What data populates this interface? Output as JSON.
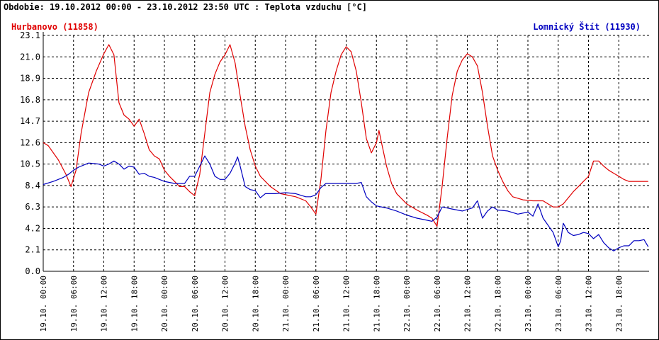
{
  "title": "Obdobie: 19.10.2012 00:00 - 23.10.2012 23:50 UTC : Teplota vzduchu [°C]",
  "chart_data": {
    "type": "line",
    "xlabel": "",
    "ylabel": "",
    "ylim": [
      0.0,
      23.1
    ],
    "xlim": [
      "19.10. 00:00",
      "24.10. 00:00"
    ],
    "yticks": [
      "0.0",
      "2.1",
      "4.2",
      "6.3",
      "8.4",
      "10.5",
      "12.6",
      "14.7",
      "16.8",
      "18.9",
      "21.0",
      "23.1"
    ],
    "xticks": [
      "19.10. 00:00",
      "19.10. 06:00",
      "19.10. 12:00",
      "19.10. 18:00",
      "20.10. 00:00",
      "20.10. 06:00",
      "20.10. 12:00",
      "20.10. 18:00",
      "21.10. 00:00",
      "21.10. 06:00",
      "21.10. 12:00",
      "21.10. 18:00",
      "22.10. 00:00",
      "22.10. 06:00",
      "22.10. 12:00",
      "22.10. 18:00",
      "23.10. 00:00",
      "23.10. 06:00",
      "23.10. 12:00",
      "23.10. 18:00"
    ],
    "grid": true,
    "legend": "top",
    "series": [
      {
        "name": "Hurbanovo (11858)",
        "color": "#e00000",
        "points": [
          [
            "19.10. 00:00",
            12.6
          ],
          [
            "19.10. 01:00",
            12.3
          ],
          [
            "19.10. 03:00",
            10.9
          ],
          [
            "19.10. 04:30",
            9.5
          ],
          [
            "19.10. 05:30",
            8.3
          ],
          [
            "19.10. 06:30",
            9.9
          ],
          [
            "19.10. 07:30",
            13.5
          ],
          [
            "19.10. 09:00",
            17.5
          ],
          [
            "19.10. 10:30",
            19.6
          ],
          [
            "19.10. 12:00",
            21.3
          ],
          [
            "19.10. 13:00",
            22.2
          ],
          [
            "19.10. 14:00",
            21.2
          ],
          [
            "19.10. 15:00",
            16.5
          ],
          [
            "19.10. 16:00",
            15.3
          ],
          [
            "19.10. 17:00",
            14.9
          ],
          [
            "19.10. 18:00",
            14.2
          ],
          [
            "19.10. 19:00",
            14.9
          ],
          [
            "19.10. 20:00",
            13.5
          ],
          [
            "19.10. 21:00",
            11.9
          ],
          [
            "19.10. 22:00",
            11.3
          ],
          [
            "19.10. 23:00",
            11.0
          ],
          [
            "20.10. 00:00",
            9.9
          ],
          [
            "20.10. 01:00",
            9.3
          ],
          [
            "20.10. 02:00",
            8.8
          ],
          [
            "20.10. 03:00",
            8.3
          ],
          [
            "20.10. 04:00",
            8.3
          ],
          [
            "20.10. 05:00",
            7.8
          ],
          [
            "20.10. 06:00",
            7.4
          ],
          [
            "20.10. 07:00",
            9.5
          ],
          [
            "20.10. 08:00",
            13.5
          ],
          [
            "20.10. 09:00",
            17.5
          ],
          [
            "20.10. 10:00",
            19.3
          ],
          [
            "20.10. 11:00",
            20.5
          ],
          [
            "20.10. 12:00",
            21.2
          ],
          [
            "20.10. 13:00",
            22.2
          ],
          [
            "20.10. 14:00",
            20.4
          ],
          [
            "20.10. 15:00",
            17.2
          ],
          [
            "20.10. 16:00",
            14.2
          ],
          [
            "20.10. 17:00",
            11.9
          ],
          [
            "20.10. 18:00",
            10.3
          ],
          [
            "20.10. 19:00",
            9.3
          ],
          [
            "20.10. 21:00",
            8.3
          ],
          [
            "20.10. 23:00",
            7.6
          ],
          [
            "21.10. 02:00",
            7.3
          ],
          [
            "21.10. 04:00",
            6.9
          ],
          [
            "21.10. 05:00",
            6.3
          ],
          [
            "21.10. 06:00",
            5.6
          ],
          [
            "21.10. 07:00",
            9.0
          ],
          [
            "21.10. 08:00",
            13.8
          ],
          [
            "21.10. 09:00",
            17.5
          ],
          [
            "21.10. 10:00",
            19.6
          ],
          [
            "21.10. 11:00",
            21.2
          ],
          [
            "21.10. 12:00",
            22.0
          ],
          [
            "21.10. 13:00",
            21.5
          ],
          [
            "21.10. 14:00",
            19.6
          ],
          [
            "21.10. 15:00",
            16.5
          ],
          [
            "21.10. 16:00",
            13.0
          ],
          [
            "21.10. 17:00",
            11.6
          ],
          [
            "21.10. 18:00",
            12.6
          ],
          [
            "21.10. 18:30",
            13.8
          ],
          [
            "21.10. 19:00",
            12.6
          ],
          [
            "21.10. 20:00",
            10.3
          ],
          [
            "21.10. 21:00",
            8.6
          ],
          [
            "21.10. 22:00",
            7.6
          ],
          [
            "22.10. 00:00",
            6.6
          ],
          [
            "22.10. 02:00",
            6.0
          ],
          [
            "22.10. 04:00",
            5.5
          ],
          [
            "22.10. 05:00",
            5.2
          ],
          [
            "22.10. 06:00",
            4.4
          ],
          [
            "22.10. 07:00",
            8.3
          ],
          [
            "22.10. 08:00",
            13.0
          ],
          [
            "22.10. 09:00",
            17.2
          ],
          [
            "22.10. 10:00",
            19.6
          ],
          [
            "22.10. 11:00",
            20.7
          ],
          [
            "22.10. 12:00",
            21.3
          ],
          [
            "22.10. 13:00",
            21.0
          ],
          [
            "22.10. 14:00",
            20.1
          ],
          [
            "22.10. 15:00",
            17.5
          ],
          [
            "22.10. 16:00",
            14.2
          ],
          [
            "22.10. 17:00",
            11.3
          ],
          [
            "22.10. 18:00",
            9.9
          ],
          [
            "22.10. 19:00",
            8.8
          ],
          [
            "22.10. 20:00",
            7.9
          ],
          [
            "22.10. 21:00",
            7.3
          ],
          [
            "22.10. 23:00",
            7.0
          ],
          [
            "23.10. 01:00",
            6.9
          ],
          [
            "23.10. 03:00",
            6.9
          ],
          [
            "23.10. 05:00",
            6.3
          ],
          [
            "23.10. 06:00",
            6.3
          ],
          [
            "23.10. 07:00",
            6.6
          ],
          [
            "23.10. 08:00",
            7.2
          ],
          [
            "23.10. 09:00",
            7.8
          ],
          [
            "23.10. 10:00",
            8.3
          ],
          [
            "23.10. 11:00",
            8.8
          ],
          [
            "23.10. 12:00",
            9.3
          ],
          [
            "23.10. 13:00",
            10.8
          ],
          [
            "23.10. 14:00",
            10.8
          ],
          [
            "23.10. 15:00",
            10.3
          ],
          [
            "23.10. 16:00",
            9.9
          ],
          [
            "23.10. 17:00",
            9.6
          ],
          [
            "23.10. 18:00",
            9.3
          ],
          [
            "23.10. 19:00",
            9.0
          ],
          [
            "23.10. 20:00",
            8.8
          ],
          [
            "23.10. 22:00",
            8.8
          ],
          [
            "23.10. 23:50",
            8.8
          ]
        ]
      },
      {
        "name": "Lomnický Štít (11930)",
        "color": "#0000c0",
        "points": [
          [
            "19.10. 00:00",
            8.5
          ],
          [
            "19.10. 02:00",
            8.8
          ],
          [
            "19.10. 04:00",
            9.2
          ],
          [
            "19.10. 05:00",
            9.5
          ],
          [
            "19.10. 06:00",
            9.9
          ],
          [
            "19.10. 07:00",
            10.2
          ],
          [
            "19.10. 09:00",
            10.6
          ],
          [
            "19.10. 11:00",
            10.5
          ],
          [
            "19.10. 12:00",
            10.3
          ],
          [
            "19.10. 13:00",
            10.5
          ],
          [
            "19.10. 14:00",
            10.8
          ],
          [
            "19.10. 15:00",
            10.5
          ],
          [
            "19.10. 16:00",
            10.0
          ],
          [
            "19.10. 17:00",
            10.3
          ],
          [
            "19.10. 18:00",
            10.2
          ],
          [
            "19.10. 19:00",
            9.5
          ],
          [
            "19.10. 20:00",
            9.6
          ],
          [
            "19.10. 21:00",
            9.3
          ],
          [
            "19.10. 22:00",
            9.2
          ],
          [
            "19.10. 23:00",
            9.0
          ],
          [
            "20.10. 00:00",
            8.8
          ],
          [
            "20.10. 02:00",
            8.6
          ],
          [
            "20.10. 04:00",
            8.6
          ],
          [
            "20.10. 05:00",
            9.3
          ],
          [
            "20.10. 06:00",
            9.3
          ],
          [
            "20.10. 07:00",
            10.3
          ],
          [
            "20.10. 08:00",
            11.3
          ],
          [
            "20.10. 09:00",
            10.5
          ],
          [
            "20.10. 10:00",
            9.3
          ],
          [
            "20.10. 11:00",
            9.0
          ],
          [
            "20.10. 12:00",
            9.0
          ],
          [
            "20.10. 13:00",
            9.6
          ],
          [
            "20.10. 14:00",
            10.6
          ],
          [
            "20.10. 14:30",
            11.2
          ],
          [
            "20.10. 15:00",
            10.3
          ],
          [
            "20.10. 16:00",
            8.3
          ],
          [
            "20.10. 17:00",
            8.0
          ],
          [
            "20.10. 18:00",
            7.9
          ],
          [
            "20.10. 19:00",
            7.2
          ],
          [
            "20.10. 20:00",
            7.6
          ],
          [
            "20.10. 22:00",
            7.6
          ],
          [
            "21.10. 00:00",
            7.7
          ],
          [
            "21.10. 02:00",
            7.6
          ],
          [
            "21.10. 04:00",
            7.3
          ],
          [
            "21.10. 05:00",
            7.3
          ],
          [
            "21.10. 06:00",
            7.5
          ],
          [
            "21.10. 07:00",
            8.2
          ],
          [
            "21.10. 08:00",
            8.6
          ],
          [
            "21.10. 10:00",
            8.6
          ],
          [
            "21.10. 12:00",
            8.6
          ],
          [
            "21.10. 14:00",
            8.6
          ],
          [
            "21.10. 15:00",
            8.7
          ],
          [
            "21.10. 16:00",
            7.3
          ],
          [
            "21.10. 17:00",
            6.8
          ],
          [
            "21.10. 18:00",
            6.4
          ],
          [
            "21.10. 20:00",
            6.2
          ],
          [
            "21.10. 22:00",
            5.9
          ],
          [
            "22.10. 00:00",
            5.5
          ],
          [
            "22.10. 02:00",
            5.2
          ],
          [
            "22.10. 04:00",
            5.0
          ],
          [
            "22.10. 05:00",
            4.9
          ],
          [
            "22.10. 06:00",
            5.3
          ],
          [
            "22.10. 07:00",
            6.3
          ],
          [
            "22.10. 09:00",
            6.1
          ],
          [
            "22.10. 11:00",
            5.9
          ],
          [
            "22.10. 13:00",
            6.2
          ],
          [
            "22.10. 14:00",
            6.9
          ],
          [
            "22.10. 15:00",
            5.2
          ],
          [
            "22.10. 16:00",
            5.9
          ],
          [
            "22.10. 17:00",
            6.3
          ],
          [
            "22.10. 18:00",
            6.0
          ],
          [
            "22.10. 20:00",
            5.9
          ],
          [
            "22.10. 22:00",
            5.6
          ],
          [
            "23.10. 00:00",
            5.8
          ],
          [
            "23.10. 01:00",
            5.4
          ],
          [
            "23.10. 02:00",
            6.6
          ],
          [
            "23.10. 03:00",
            5.2
          ],
          [
            "23.10. 04:00",
            4.5
          ],
          [
            "23.10. 05:00",
            3.8
          ],
          [
            "23.10. 06:00",
            2.4
          ],
          [
            "23.10. 06:30",
            3.0
          ],
          [
            "23.10. 07:00",
            4.7
          ],
          [
            "23.10. 08:00",
            3.8
          ],
          [
            "23.10. 09:00",
            3.5
          ],
          [
            "23.10. 10:00",
            3.6
          ],
          [
            "23.10. 11:00",
            3.8
          ],
          [
            "23.10. 12:00",
            3.7
          ],
          [
            "23.10. 13:00",
            3.2
          ],
          [
            "23.10. 14:00",
            3.6
          ],
          [
            "23.10. 15:00",
            2.8
          ],
          [
            "23.10. 16:00",
            2.3
          ],
          [
            "23.10. 17:00",
            2.0
          ],
          [
            "23.10. 18:00",
            2.3
          ],
          [
            "23.10. 19:00",
            2.5
          ],
          [
            "23.10. 20:00",
            2.5
          ],
          [
            "23.10. 21:00",
            3.0
          ],
          [
            "23.10. 22:00",
            3.0
          ],
          [
            "23.10. 23:00",
            3.1
          ],
          [
            "23.10. 23:50",
            2.4
          ]
        ]
      }
    ]
  }
}
